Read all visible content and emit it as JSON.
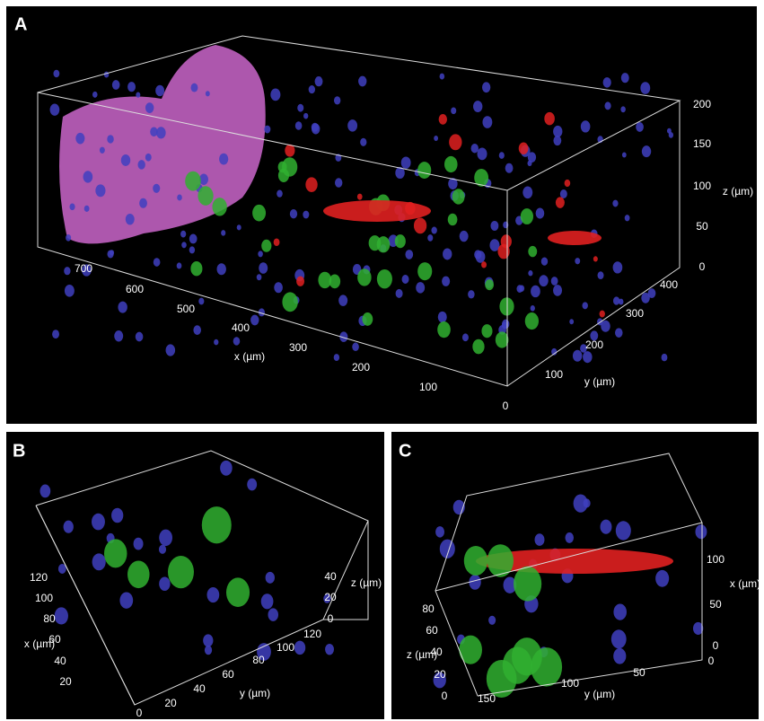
{
  "panels": [
    {
      "label": "A",
      "axes": [
        {
          "label": "x (µm)",
          "ticks": [
            700,
            600,
            500,
            400,
            300,
            200,
            100
          ]
        },
        {
          "label": "y (µm)",
          "ticks": [
            0,
            100,
            200,
            300,
            400
          ]
        },
        {
          "label": "z (µm)",
          "ticks": [
            200,
            150,
            100,
            50,
            0
          ]
        }
      ]
    },
    {
      "label": "B",
      "axes": [
        {
          "label": "x (µm)",
          "ticks": [
            120,
            100,
            80,
            60,
            40,
            20
          ]
        },
        {
          "label": "y (µm)",
          "ticks": [
            0,
            20,
            40,
            60,
            80,
            100,
            120
          ]
        },
        {
          "label": "z (µm)",
          "ticks": [
            40,
            20,
            0
          ]
        }
      ]
    },
    {
      "label": "C",
      "axes": [
        {
          "label": "z (µm)",
          "ticks": [
            80,
            60,
            40,
            20,
            0
          ]
        },
        {
          "label": "y (µm)",
          "ticks": [
            150,
            100,
            50,
            0
          ]
        },
        {
          "label": "x (µm)",
          "ticks": [
            100,
            50,
            0
          ]
        }
      ]
    }
  ]
}
